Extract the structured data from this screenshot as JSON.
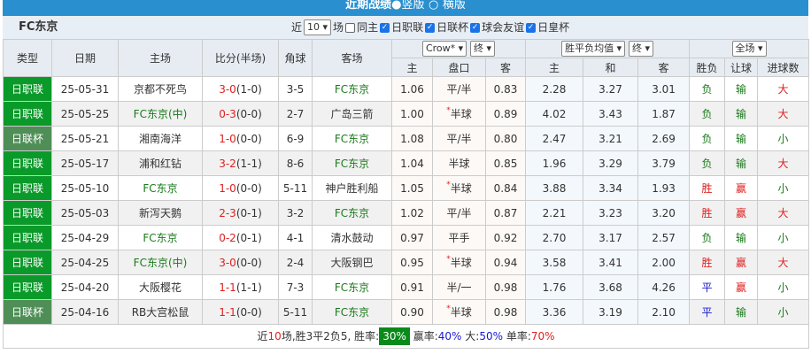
{
  "title": "近期战绩",
  "view_options": [
    "竖版",
    "横版"
  ],
  "team": "FC东京",
  "filter": {
    "prefix": "近",
    "count": "10",
    "suffix": "场",
    "checks": [
      {
        "label": "同主",
        "checked": false
      },
      {
        "label": "日职联",
        "checked": true
      },
      {
        "label": "日联杯",
        "checked": true
      },
      {
        "label": "球会友谊",
        "checked": true
      },
      {
        "label": "日皇杯",
        "checked": true
      }
    ]
  },
  "headers": {
    "type": "类型",
    "date": "日期",
    "home": "主场",
    "score": "比分(半场)",
    "corner": "角球",
    "away": "客场",
    "company": "Crow*",
    "stage1": "终",
    "odds_type": "胜平负均值",
    "stage2": "终",
    "scope": "全场",
    "sub": [
      "主",
      "盘口",
      "客",
      "主",
      "和",
      "客",
      "胜负",
      "让球",
      "进球数"
    ]
  },
  "rows": [
    {
      "type": "日职联",
      "cup": false,
      "date": "25-05-31",
      "home": "京都不死鸟",
      "home_is_team": false,
      "score": "3-0",
      "half": "(1-0)",
      "corner": "3-5",
      "away": "FC东京",
      "away_is_team": true,
      "h": "1.06",
      "line": "平/半",
      "star": false,
      "a": "0.83",
      "w": "2.28",
      "d": "3.27",
      "l": "3.01",
      "res": "负",
      "hc": "输",
      "ou": "大"
    },
    {
      "type": "日职联",
      "cup": false,
      "date": "25-05-25",
      "home": "FC东京(中)",
      "home_is_team": true,
      "score": "0-3",
      "half": "(0-0)",
      "corner": "2-7",
      "away": "广岛三箭",
      "away_is_team": false,
      "h": "1.00",
      "line": "半球",
      "star": true,
      "a": "0.89",
      "w": "4.02",
      "d": "3.43",
      "l": "1.87",
      "res": "负",
      "hc": "输",
      "ou": "大"
    },
    {
      "type": "日联杯",
      "cup": true,
      "date": "25-05-21",
      "home": "湘南海洋",
      "home_is_team": false,
      "score": "1-0",
      "half": "(0-0)",
      "corner": "6-9",
      "away": "FC东京",
      "away_is_team": true,
      "h": "1.08",
      "line": "平/半",
      "star": false,
      "a": "0.80",
      "w": "2.47",
      "d": "3.21",
      "l": "2.69",
      "res": "负",
      "hc": "输",
      "ou": "小"
    },
    {
      "type": "日职联",
      "cup": false,
      "date": "25-05-17",
      "home": "浦和红钻",
      "home_is_team": false,
      "score": "3-2",
      "half": "(1-1)",
      "corner": "8-6",
      "away": "FC东京",
      "away_is_team": true,
      "h": "1.04",
      "line": "半球",
      "star": false,
      "a": "0.85",
      "w": "1.96",
      "d": "3.29",
      "l": "3.79",
      "res": "负",
      "hc": "输",
      "ou": "大"
    },
    {
      "type": "日职联",
      "cup": false,
      "date": "25-05-10",
      "home": "FC东京",
      "home_is_team": true,
      "score": "1-0",
      "half": "(0-0)",
      "corner": "5-11",
      "away": "神户胜利船",
      "away_is_team": false,
      "h": "1.05",
      "line": "半球",
      "star": true,
      "a": "0.84",
      "w": "3.88",
      "d": "3.34",
      "l": "1.93",
      "res": "胜",
      "hc": "赢",
      "ou": "小"
    },
    {
      "type": "日职联",
      "cup": false,
      "date": "25-05-03",
      "home": "新泻天鹅",
      "home_is_team": false,
      "score": "2-3",
      "half": "(0-1)",
      "corner": "3-2",
      "away": "FC东京",
      "away_is_team": true,
      "h": "1.02",
      "line": "平/半",
      "star": false,
      "a": "0.87",
      "w": "2.21",
      "d": "3.23",
      "l": "3.20",
      "res": "胜",
      "hc": "赢",
      "ou": "大"
    },
    {
      "type": "日职联",
      "cup": false,
      "date": "25-04-29",
      "home": "FC东京",
      "home_is_team": true,
      "score": "0-2",
      "half": "(0-1)",
      "corner": "4-1",
      "away": "清水鼓动",
      "away_is_team": false,
      "h": "0.97",
      "line": "平手",
      "star": false,
      "a": "0.92",
      "w": "2.70",
      "d": "3.17",
      "l": "2.57",
      "res": "负",
      "hc": "输",
      "ou": "小"
    },
    {
      "type": "日职联",
      "cup": false,
      "date": "25-04-25",
      "home": "FC东京(中)",
      "home_is_team": true,
      "score": "3-0",
      "half": "(0-0)",
      "corner": "2-4",
      "away": "大阪钢巴",
      "away_is_team": false,
      "h": "0.95",
      "line": "半球",
      "star": true,
      "a": "0.94",
      "w": "3.58",
      "d": "3.41",
      "l": "2.00",
      "res": "胜",
      "hc": "赢",
      "ou": "大"
    },
    {
      "type": "日职联",
      "cup": false,
      "date": "25-04-20",
      "home": "大阪樱花",
      "home_is_team": false,
      "score": "1-1",
      "half": "(1-1)",
      "corner": "7-3",
      "away": "FC东京",
      "away_is_team": true,
      "h": "0.91",
      "line": "半/一",
      "star": false,
      "a": "0.98",
      "w": "1.76",
      "d": "3.68",
      "l": "4.26",
      "res": "平",
      "hc": "赢",
      "ou": "小"
    },
    {
      "type": "日联杯",
      "cup": true,
      "date": "25-04-16",
      "home": "RB大宫松鼠",
      "home_is_team": false,
      "score": "1-1",
      "half": "(0-0)",
      "corner": "5-11",
      "away": "FC东京",
      "away_is_team": true,
      "h": "0.90",
      "line": "半球",
      "star": true,
      "a": "0.98",
      "w": "3.36",
      "d": "3.19",
      "l": "2.10",
      "res": "平",
      "hc": "输",
      "ou": "小"
    }
  ],
  "summary": {
    "p1": "近",
    "n": "10",
    "p2": "场,胜3平2负5, 胜率:",
    "win_rate": "30%",
    "p3": "赢率:",
    "hc_rate": "40%",
    "p4": "大:",
    "over_rate": "50%",
    "p5": "单率:",
    "odd_rate": "70%"
  }
}
